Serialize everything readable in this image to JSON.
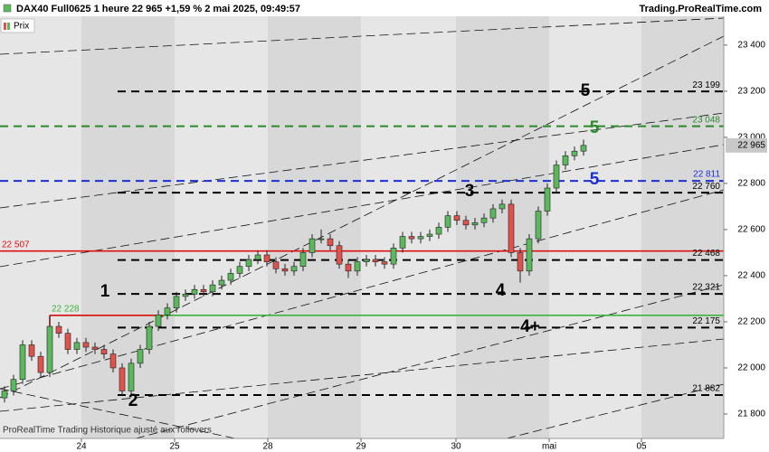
{
  "chart_data": {
    "type": "candlestick",
    "title": "DAX40 Full0625 1 heure 22 965 +1,59 % 2 mai 2025, 09:49:57",
    "source": "Trading.ProRealTime.com",
    "legend": "Prix",
    "footer": "ProRealTime Trading  Historique ajusté aux rollovers",
    "last_price": {
      "value": 22965,
      "label": "22 965"
    },
    "up_color": "#5cb85c",
    "down_color": "#e0524c",
    "open": [
      21870,
      21900,
      21950,
      22100,
      22050,
      21980,
      22180,
      22150,
      22080,
      22110,
      22090,
      22080,
      22060,
      22000,
      21900,
      22020,
      22080,
      22180,
      22230,
      22260,
      22310,
      22320,
      22340,
      22330,
      22360,
      22380,
      22410,
      22440,
      22470,
      22490,
      22460,
      22430,
      22420,
      22440,
      22500,
      22560,
      22560,
      22530,
      22450,
      22420,
      22460,
      22470,
      22460,
      22450,
      22520,
      22570,
      22560,
      22570,
      22580,
      22610,
      22660,
      22640,
      22620,
      22630,
      22650,
      22690,
      22710,
      22500,
      22420,
      22560,
      22680,
      22780,
      22880,
      22920,
      22940
    ],
    "high": [
      21920,
      21970,
      22120,
      22120,
      22070,
      22228,
      22200,
      22170,
      22130,
      22130,
      22110,
      22100,
      22080,
      22020,
      22040,
      22100,
      22200,
      22250,
      22280,
      22330,
      22340,
      22360,
      22360,
      22380,
      22400,
      22430,
      22460,
      22490,
      22510,
      22510,
      22480,
      22450,
      22460,
      22520,
      22580,
      22600,
      22580,
      22550,
      22470,
      22480,
      22490,
      22490,
      22480,
      22540,
      22590,
      22590,
      22590,
      22600,
      22630,
      22680,
      22680,
      22660,
      22650,
      22670,
      22710,
      22730,
      22730,
      22520,
      22580,
      22700,
      22800,
      22900,
      22940,
      22960,
      22990
    ],
    "low": [
      21850,
      21880,
      21930,
      22030,
      21960,
      21960,
      22130,
      22060,
      22060,
      22070,
      22060,
      22040,
      21980,
      21882,
      21880,
      22000,
      22060,
      22160,
      22210,
      22240,
      22290,
      22300,
      22310,
      22310,
      22340,
      22360,
      22390,
      22420,
      22450,
      22440,
      22410,
      22400,
      22400,
      22420,
      22480,
      22540,
      22510,
      22430,
      22390,
      22400,
      22440,
      22440,
      22430,
      22430,
      22500,
      22540,
      22540,
      22550,
      22560,
      22590,
      22620,
      22600,
      22600,
      22610,
      22630,
      22670,
      22480,
      22370,
      22400,
      22540,
      22660,
      22760,
      22860,
      22900,
      22920
    ],
    "close": [
      21900,
      21950,
      22100,
      22050,
      21980,
      22180,
      22150,
      22080,
      22110,
      22090,
      22080,
      22060,
      22000,
      21900,
      22020,
      22080,
      22180,
      22230,
      22260,
      22310,
      22320,
      22340,
      22330,
      22360,
      22380,
      22410,
      22440,
      22470,
      22490,
      22460,
      22430,
      22420,
      22440,
      22500,
      22560,
      22560,
      22530,
      22450,
      22420,
      22460,
      22470,
      22460,
      22450,
      22520,
      22570,
      22560,
      22570,
      22580,
      22610,
      22660,
      22640,
      22620,
      22630,
      22650,
      22690,
      22710,
      22500,
      22420,
      22560,
      22680,
      22780,
      22880,
      22920,
      22940,
      22965
    ],
    "xlim": [
      -0.5,
      79.5
    ],
    "xticks": [
      {
        "value": 8.5,
        "label": "24"
      },
      {
        "value": 18.8,
        "label": "25"
      },
      {
        "value": 29.1,
        "label": "28"
      },
      {
        "value": 39.4,
        "label": "29"
      },
      {
        "value": 49.9,
        "label": "30"
      },
      {
        "value": 60.2,
        "label": "mai"
      },
      {
        "value": 70.4,
        "label": "05"
      }
    ],
    "ylim": [
      21694,
      23525
    ],
    "yticks": [
      {
        "value": 21800,
        "label": "21 800"
      },
      {
        "value": 22000,
        "label": "22 000"
      },
      {
        "value": 22200,
        "label": "22 200"
      },
      {
        "value": 22400,
        "label": "22 400"
      },
      {
        "value": 22600,
        "label": "22 600"
      },
      {
        "value": 22800,
        "label": "22 800"
      },
      {
        "value": 23000,
        "label": "23 000"
      },
      {
        "value": 23200,
        "label": "23 200"
      },
      {
        "value": 23400,
        "label": "23 400"
      }
    ],
    "levels": [
      {
        "value": 23199,
        "label": "23 199",
        "color": "#000000",
        "style": "dashed"
      },
      {
        "value": 23048,
        "label": "23 048",
        "color": "#2a8a2a",
        "style": "dashed"
      },
      {
        "value": 22811,
        "label": "22 811",
        "color": "#1a2fd6",
        "style": "dashed"
      },
      {
        "value": 22760,
        "label": "22 760",
        "color": "#000000",
        "style": "dashed"
      },
      {
        "value": 22507,
        "label": "22 507",
        "color": "#e01010",
        "style": "solid"
      },
      {
        "value": 22468,
        "label": "22 468",
        "color": "#000000",
        "style": "dashed"
      },
      {
        "value": 22321,
        "label": "22 321",
        "color": "#000000",
        "style": "dashed"
      },
      {
        "value": 22228,
        "label": "22 228",
        "color": "#3cb43c",
        "style": "solid"
      },
      {
        "value": 22175,
        "label": "22 175",
        "color": "#000000",
        "style": "dashed"
      },
      {
        "value": 21882,
        "label": "21 882",
        "color": "#000000",
        "style": "dashed"
      }
    ],
    "annotations": [
      {
        "text": "5",
        "color": "#000000"
      },
      {
        "text": "5",
        "color": "#2a8a2a"
      },
      {
        "text": "5",
        "color": "#1a2fd6"
      },
      {
        "text": "3",
        "color": "#000000"
      },
      {
        "text": "1",
        "color": "#000000"
      },
      {
        "text": "4",
        "color": "#000000"
      },
      {
        "text": "4+",
        "color": "#000000"
      },
      {
        "text": "2",
        "color": "#000000"
      }
    ]
  }
}
